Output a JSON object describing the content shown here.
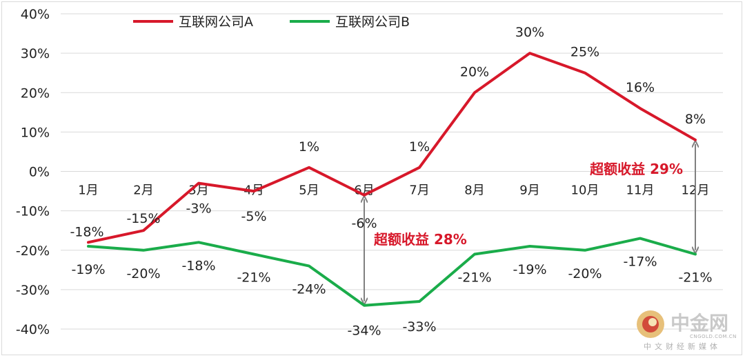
{
  "chart_data": {
    "type": "line",
    "categories": [
      "1月",
      "2月",
      "3月",
      "4月",
      "5月",
      "6月",
      "7月",
      "8月",
      "9月",
      "10月",
      "11月",
      "12月"
    ],
    "series": [
      {
        "name": "互联网公司A",
        "color": "#d7182a",
        "values": [
          -18,
          -15,
          -3,
          -5,
          1,
          -6,
          1,
          20,
          30,
          25,
          16,
          8
        ],
        "labels": [
          "-18%",
          "-15%",
          "-3%",
          "-5%",
          "1%",
          "-6%",
          "1%",
          "20%",
          "30%",
          "25%",
          "16%",
          "8%"
        ]
      },
      {
        "name": "互联网公司B",
        "color": "#1aac4a",
        "values": [
          -19,
          -20,
          -18,
          -21,
          -24,
          -34,
          -33,
          -21,
          -19,
          -20,
          -17,
          -21
        ],
        "labels": [
          "-19%",
          "-20%",
          "-18%",
          "-21%",
          "-24%",
          "-34%",
          "-33%",
          "-21%",
          "-19%",
          "-20%",
          "-17%",
          "-21%"
        ]
      }
    ],
    "ylim": [
      -40,
      40
    ],
    "yticks": [
      40,
      30,
      20,
      10,
      0,
      -10,
      -20,
      -30,
      -40
    ],
    "ytick_labels": [
      "40%",
      "30%",
      "20%",
      "10%",
      "0%",
      "-10%",
      "-20%",
      "-30%",
      "-40%"
    ],
    "legend_position": "top",
    "grid": true,
    "annotations": [
      {
        "text": "超额收益 28%",
        "category": "6月"
      },
      {
        "text": "超额收益 29%",
        "category": "12月"
      }
    ]
  },
  "watermark": {
    "name": "中金网",
    "domain": "CNGOLD.COM.CN",
    "tagline": "中文财经新媒体"
  }
}
